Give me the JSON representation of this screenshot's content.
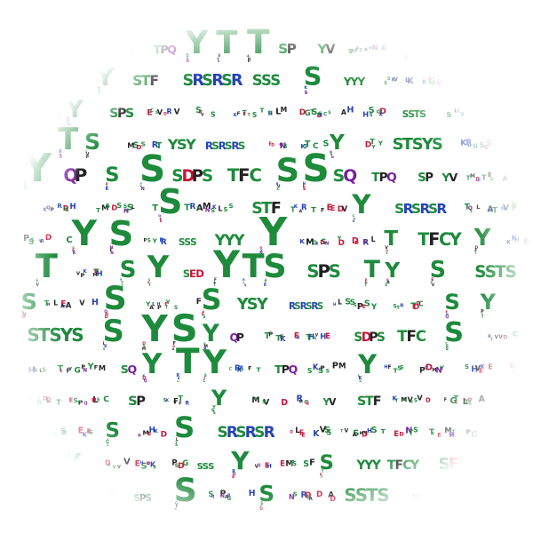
{
  "palette": {
    "S": "#1e8a3c",
    "T": "#1e8a3c",
    "Y": "#1e8a3c",
    "G": "#1e8a3c",
    "C": "#1e8a3c",
    "Q": "#7a1f9e",
    "N": "#7a1f9e",
    "P": "#222222",
    "F": "#222222",
    "A": "#222222",
    "V": "#222222",
    "L": "#222222",
    "I": "#222222",
    "M": "#222222",
    "W": "#222222",
    "R": "#2442b8",
    "K": "#2442b8",
    "H": "#2442b8",
    "D": "#c8153a",
    "E": "#c8153a",
    "X": "#555555"
  },
  "motifs": [
    "SQ",
    "TPQ",
    "SP",
    "YV",
    "STF",
    "SRSRSR",
    "SSS",
    "YYY",
    "TFCY",
    "SED",
    "SPS",
    "SSTS",
    "YSY",
    "RSRSRS",
    "STSYS",
    "QP",
    "SDPS",
    "TFC"
  ]
}
